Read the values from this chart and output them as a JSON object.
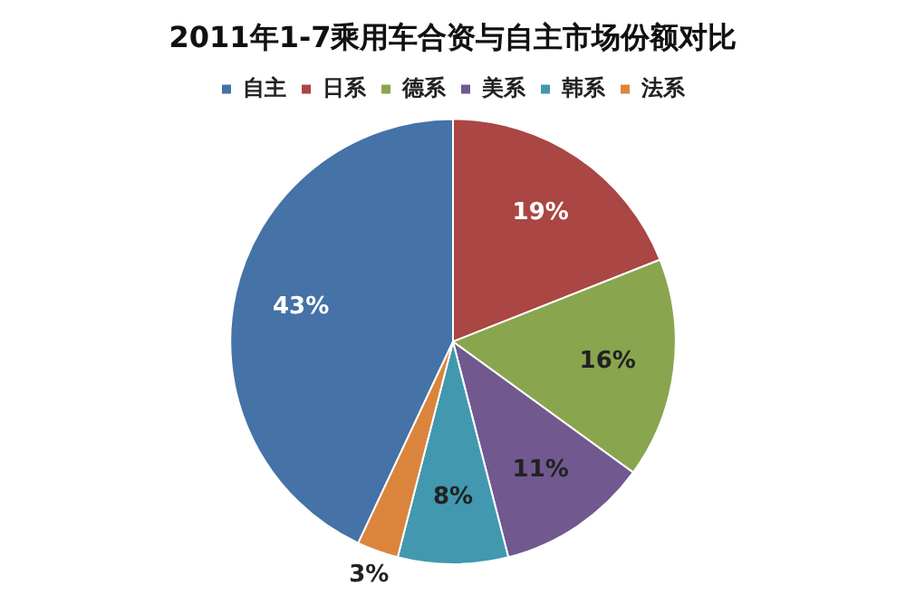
{
  "chart_data": {
    "type": "pie",
    "title": "2011年1-7乘用车合资与自主市场份额对比",
    "categories": [
      "自主",
      "日系",
      "德系",
      "美系",
      "韩系",
      "法系"
    ],
    "values": [
      43,
      19,
      16,
      11,
      8,
      3
    ],
    "colors": [
      "#4572a7",
      "#aa4643",
      "#89a54e",
      "#71588f",
      "#4198af",
      "#db843d"
    ],
    "value_labels": [
      "43%",
      "19%",
      "16%",
      "11%",
      "8%",
      "3%"
    ],
    "legend": "top"
  }
}
